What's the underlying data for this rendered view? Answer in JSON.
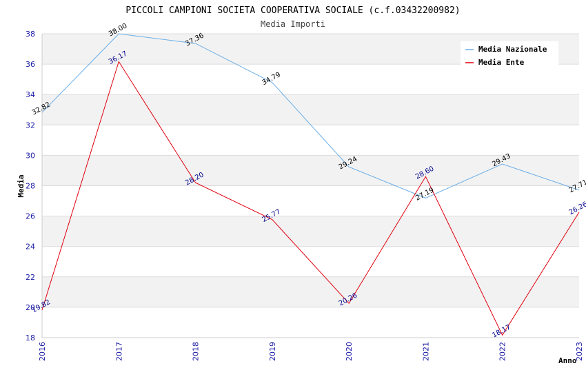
{
  "chart_data": {
    "type": "line",
    "title": "PICCOLI CAMPIONI SOCIETA COOPERATIVA SOCIALE (c.f.03432200982)",
    "subtitle": "Media Importi",
    "xlabel": "Anno",
    "ylabel": "Media",
    "x": [
      "2016",
      "2017",
      "2018",
      "2019",
      "2020",
      "2021",
      "2022",
      "2023"
    ],
    "ylim": [
      18,
      38
    ],
    "yticks": [
      18,
      20,
      22,
      24,
      26,
      28,
      30,
      32,
      34,
      36,
      38
    ],
    "grid": "horizontal bands",
    "legend_position": "top-right",
    "series": [
      {
        "name": "Media Nazionale",
        "color": "#6aaee8",
        "label_color": "#000000",
        "values": [
          32.82,
          38.0,
          37.36,
          34.79,
          29.24,
          27.19,
          29.43,
          27.71
        ],
        "labels": [
          "32.82",
          "38.00",
          "37.36",
          "34.79",
          "29.24",
          "27.19",
          "29.43",
          "27.71"
        ]
      },
      {
        "name": "Media Ente",
        "color": "#e0000f",
        "label_color": "#00008b",
        "values": [
          19.82,
          36.17,
          28.2,
          25.77,
          20.26,
          28.6,
          18.17,
          26.26
        ],
        "labels": [
          "19.82",
          "36.17",
          "28.20",
          "25.77",
          "20.26",
          "28.60",
          "18.17",
          "26.26"
        ]
      }
    ]
  }
}
